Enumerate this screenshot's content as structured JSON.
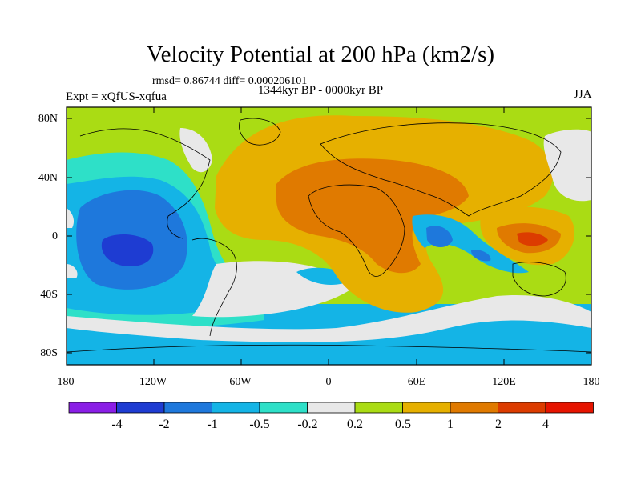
{
  "title": "Velocity Potential at 200 hPa (km2/s)",
  "stats": "rmsd= 0.86744 diff= 0.000206101",
  "period": "1344kyr BP - 0000kyr BP",
  "experiment": "Expt = xQfUS-xqfua",
  "season": "JJA",
  "lat_ticks": [
    "80N",
    "40N",
    "0",
    "40S",
    "80S"
  ],
  "lon_ticks": [
    "180",
    "120W",
    "60W",
    "0",
    "60E",
    "120E",
    "180"
  ],
  "colorbar": {
    "labels": [
      "-4",
      "-2",
      "-1",
      "-0.5",
      "-0.2",
      "0.2",
      "0.5",
      "1",
      "2",
      "4"
    ],
    "colors": [
      "#8a1ee6",
      "#1e3cd2",
      "#1e78dc",
      "#14b4e6",
      "#2ee0c8",
      "#e8e8e8",
      "#aadc14",
      "#e6b000",
      "#e07a00",
      "#dc3c00",
      "#e61400"
    ]
  }
}
